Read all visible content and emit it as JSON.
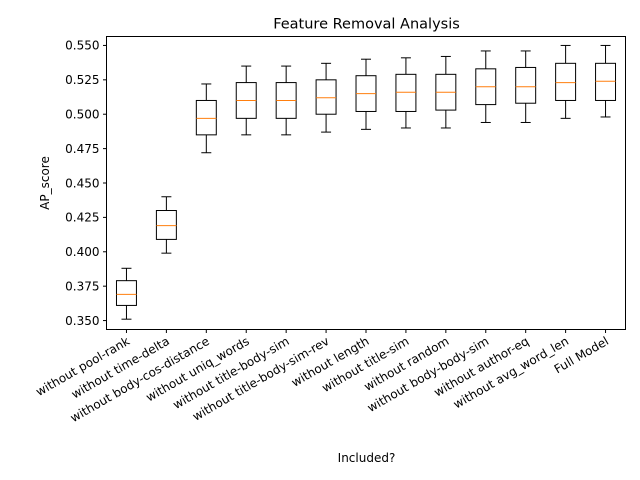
{
  "chart_data": {
    "type": "box",
    "title": "Feature Removal Analysis",
    "xlabel": "Included?",
    "ylabel": "AP_score",
    "ylim": [
      0.3435,
      0.5565
    ],
    "yticks": [
      0.35,
      0.375,
      0.4,
      0.425,
      0.45,
      0.475,
      0.5,
      0.525,
      0.55
    ],
    "ytick_labels": [
      "0.350",
      "0.375",
      "0.400",
      "0.425",
      "0.450",
      "0.475",
      "0.500",
      "0.525",
      "0.550"
    ],
    "grid": false,
    "median_color": "#ff7f0e",
    "box_color": "#000000",
    "categories": [
      "without pool-rank",
      "without time-delta",
      "without body-cos-distance",
      "without uniq_words",
      "without title-body-sim",
      "without title-body-sim-rev",
      "without length",
      "without title-sim",
      "without random",
      "without body-body-sim",
      "without author-eq",
      "without avg_word_len",
      "Full Model"
    ],
    "boxes": [
      {
        "whislo": 0.351,
        "q1": 0.361,
        "med": 0.369,
        "q3": 0.379,
        "whishi": 0.388
      },
      {
        "whislo": 0.399,
        "q1": 0.409,
        "med": 0.419,
        "q3": 0.43,
        "whishi": 0.44
      },
      {
        "whislo": 0.472,
        "q1": 0.485,
        "med": 0.497,
        "q3": 0.51,
        "whishi": 0.522
      },
      {
        "whislo": 0.485,
        "q1": 0.497,
        "med": 0.51,
        "q3": 0.523,
        "whishi": 0.535
      },
      {
        "whislo": 0.485,
        "q1": 0.497,
        "med": 0.51,
        "q3": 0.523,
        "whishi": 0.535
      },
      {
        "whislo": 0.487,
        "q1": 0.5,
        "med": 0.512,
        "q3": 0.525,
        "whishi": 0.537
      },
      {
        "whislo": 0.489,
        "q1": 0.502,
        "med": 0.515,
        "q3": 0.528,
        "whishi": 0.54
      },
      {
        "whislo": 0.49,
        "q1": 0.502,
        "med": 0.516,
        "q3": 0.529,
        "whishi": 0.541
      },
      {
        "whislo": 0.49,
        "q1": 0.503,
        "med": 0.516,
        "q3": 0.529,
        "whishi": 0.542
      },
      {
        "whislo": 0.494,
        "q1": 0.507,
        "med": 0.52,
        "q3": 0.533,
        "whishi": 0.546
      },
      {
        "whislo": 0.494,
        "q1": 0.508,
        "med": 0.52,
        "q3": 0.534,
        "whishi": 0.546
      },
      {
        "whislo": 0.497,
        "q1": 0.51,
        "med": 0.523,
        "q3": 0.537,
        "whishi": 0.55
      },
      {
        "whislo": 0.498,
        "q1": 0.51,
        "med": 0.524,
        "q3": 0.537,
        "whishi": 0.55
      }
    ]
  }
}
